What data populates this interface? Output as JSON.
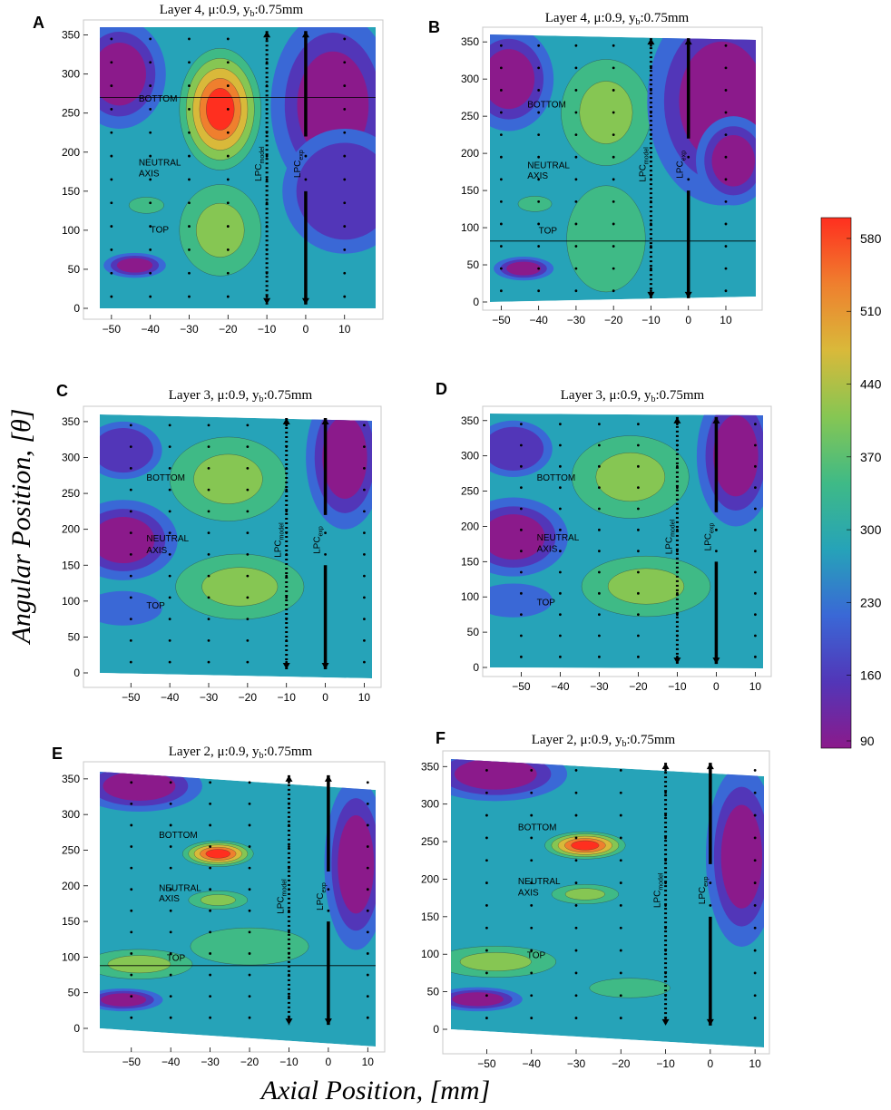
{
  "chart_data": {
    "type": "contour",
    "ylabel": "Angular Position, [θ]",
    "xlabel": "Axial Position, [mm]",
    "colorbar": {
      "ticks": [
        "90",
        "160",
        "230",
        "300",
        "370",
        "440",
        "510",
        "580"
      ],
      "range": [
        90,
        600
      ],
      "colors": [
        "#8b1a8b",
        "#5236b8",
        "#3a68d6",
        "#26a3b8",
        "#3fba86",
        "#86c653",
        "#d9b93a",
        "#ef7f2e",
        "#ff2f1f"
      ]
    },
    "vlines": {
      "model_label": "LPC",
      "model_sub": "model",
      "exp_label": "LPC",
      "exp_sub": "exp",
      "model_x": -10,
      "exp_x": 0
    },
    "panels": [
      {
        "id": "A",
        "title": "Layer 4, μ:0.9, y",
        "title_sub": "b",
        "title_tail": ":0.75mm",
        "xticks": [
          -50,
          -40,
          -30,
          -20,
          -10,
          0,
          10
        ],
        "yticks": [
          0,
          50,
          100,
          150,
          200,
          250,
          300,
          350
        ],
        "xlim": [
          -53,
          18
        ],
        "ylim": [
          0,
          360
        ],
        "annotations": [
          {
            "text": "BOTTOM",
            "x": -43,
            "y": 265
          },
          {
            "text": "NEUTRAL",
            "x": -43,
            "y": 183
          },
          {
            "text": "AXIS",
            "x": -43,
            "y": 169
          },
          {
            "text": "TOP",
            "x": -40,
            "y": 97
          }
        ],
        "hlines": [
          270
        ],
        "blobs": [
          [
            -22,
            255,
            0.95,
            7,
            60
          ],
          [
            -22,
            100,
            0.62,
            7,
            45
          ],
          [
            -41,
            132,
            0.45,
            3,
            8
          ],
          [
            -44,
            55,
            0.03,
            4,
            8
          ],
          [
            -48,
            300,
            0.03,
            6,
            35
          ],
          [
            7,
            260,
            0.05,
            8,
            60
          ],
          [
            10,
            150,
            0.18,
            8,
            40
          ]
        ]
      },
      {
        "id": "B",
        "title": "Layer 4, μ:0.9, y",
        "title_sub": "b",
        "title_tail": ":0.75mm",
        "xticks": [
          -50,
          -40,
          -30,
          -20,
          -10,
          0,
          10
        ],
        "yticks": [
          0,
          50,
          100,
          150,
          200,
          250,
          300,
          350
        ],
        "xlim": [
          -53,
          18
        ],
        "ylim": [
          0,
          360
        ],
        "annotations": [
          {
            "text": "BOTTOM",
            "x": -43,
            "y": 262
          },
          {
            "text": "NEUTRAL",
            "x": -43,
            "y": 180
          },
          {
            "text": "AXIS",
            "x": -43,
            "y": 166
          },
          {
            "text": "TOP",
            "x": -40,
            "y": 92
          }
        ],
        "hlines": [
          82
        ],
        "blobs": [
          [
            -22,
            255,
            0.68,
            8,
            55
          ],
          [
            -22,
            85,
            0.55,
            7,
            55
          ],
          [
            -41,
            132,
            0.45,
            3,
            8
          ],
          [
            -44,
            45,
            0.03,
            4,
            8
          ],
          [
            -48,
            300,
            0.03,
            6,
            35
          ],
          [
            9,
            270,
            0.03,
            10,
            70
          ],
          [
            12,
            190,
            0.04,
            5,
            30
          ]
        ]
      },
      {
        "id": "C",
        "title": "Layer 3, μ:0.9, y",
        "title_sub": "b",
        "title_tail": ":0.75mm",
        "xticks": [
          -50,
          -40,
          -30,
          -20,
          -10,
          0,
          10
        ],
        "yticks": [
          0,
          50,
          100,
          150,
          200,
          250,
          300,
          350
        ],
        "xlim": [
          -58,
          12
        ],
        "ylim": [
          0,
          360
        ],
        "annotations": [
          {
            "text": "BOTTOM",
            "x": -46,
            "y": 268
          },
          {
            "text": "NEUTRAL",
            "x": -46,
            "y": 183
          },
          {
            "text": "AXIS",
            "x": -46,
            "y": 167
          },
          {
            "text": "TOP",
            "x": -46,
            "y": 90
          }
        ],
        "hlines": [],
        "blobs": [
          [
            -25,
            270,
            0.58,
            10,
            45
          ],
          [
            -22,
            120,
            0.58,
            11,
            35
          ],
          [
            -52,
            185,
            0.02,
            7,
            28
          ],
          [
            -52,
            90,
            0.25,
            5,
            12
          ],
          [
            -52,
            310,
            0.2,
            5,
            20
          ],
          [
            5,
            300,
            0.05,
            5,
            50
          ]
        ]
      },
      {
        "id": "D",
        "title": "Layer 3, μ:0.9, y",
        "title_sub": "b",
        "title_tail": ":0.75mm",
        "xticks": [
          -50,
          -40,
          -30,
          -20,
          -10,
          0,
          10
        ],
        "yticks": [
          0,
          50,
          100,
          150,
          200,
          250,
          300,
          350
        ],
        "xlim": [
          -58,
          12
        ],
        "ylim": [
          0,
          360
        ],
        "annotations": [
          {
            "text": "BOTTOM",
            "x": -46,
            "y": 265
          },
          {
            "text": "NEUTRAL",
            "x": -46,
            "y": 180
          },
          {
            "text": "AXIS",
            "x": -46,
            "y": 164
          },
          {
            "text": "TOP",
            "x": -46,
            "y": 88
          }
        ],
        "hlines": [],
        "blobs": [
          [
            -22,
            270,
            0.6,
            10,
            45
          ],
          [
            -18,
            115,
            0.62,
            11,
            33
          ],
          [
            -52,
            185,
            0.02,
            7,
            28
          ],
          [
            -52,
            95,
            0.3,
            5,
            12
          ],
          [
            -52,
            310,
            0.2,
            5,
            20
          ],
          [
            5,
            300,
            0.05,
            5,
            50
          ]
        ]
      },
      {
        "id": "E",
        "title": "Layer 2, μ:0.9, y",
        "title_sub": "b",
        "title_tail": ":0.75mm",
        "xticks": [
          -50,
          -40,
          -30,
          -20,
          -10,
          0,
          10
        ],
        "yticks": [
          0,
          50,
          100,
          150,
          200,
          250,
          300,
          350
        ],
        "xlim": [
          -58,
          12
        ],
        "ylim": [
          0,
          360
        ],
        "annotations": [
          {
            "text": "BOTTOM",
            "x": -43,
            "y": 267
          },
          {
            "text": "NEUTRAL",
            "x": -43,
            "y": 193
          },
          {
            "text": "AXIS",
            "x": -43,
            "y": 178
          },
          {
            "text": "TOP",
            "x": -41,
            "y": 95
          }
        ],
        "hlines": [
          88
        ],
        "blobs": [
          [
            -28,
            245,
            0.95,
            6,
            14
          ],
          [
            -28,
            180,
            0.6,
            5,
            10
          ],
          [
            -48,
            90,
            0.65,
            9,
            16
          ],
          [
            -20,
            115,
            0.45,
            10,
            20
          ],
          [
            -48,
            340,
            0.02,
            8,
            18
          ],
          [
            7,
            230,
            0.02,
            4,
            60
          ],
          [
            -52,
            40,
            0.04,
            5,
            8
          ]
        ]
      },
      {
        "id": "F",
        "title": "Layer 2, μ:0.9, y",
        "title_sub": "b",
        "title_tail": ":0.75mm",
        "xticks": [
          -50,
          -40,
          -30,
          -20,
          -10,
          0,
          10
        ],
        "yticks": [
          0,
          50,
          100,
          150,
          200,
          250,
          300,
          350
        ],
        "xlim": [
          -58,
          12
        ],
        "ylim": [
          0,
          360
        ],
        "annotations": [
          {
            "text": "BOTTOM",
            "x": -43,
            "y": 265
          },
          {
            "text": "NEUTRAL",
            "x": -43,
            "y": 193
          },
          {
            "text": "AXIS",
            "x": -43,
            "y": 178
          },
          {
            "text": "TOP",
            "x": -41,
            "y": 95
          }
        ],
        "hlines": [],
        "blobs": [
          [
            -28,
            245,
            0.95,
            6,
            14
          ],
          [
            -28,
            180,
            0.6,
            5,
            10
          ],
          [
            -48,
            90,
            0.65,
            9,
            16
          ],
          [
            -18,
            55,
            0.55,
            6,
            10
          ],
          [
            -48,
            340,
            0.02,
            8,
            18
          ],
          [
            7,
            230,
            0.02,
            4,
            60
          ],
          [
            -52,
            40,
            0.04,
            5,
            8
          ]
        ]
      }
    ]
  }
}
